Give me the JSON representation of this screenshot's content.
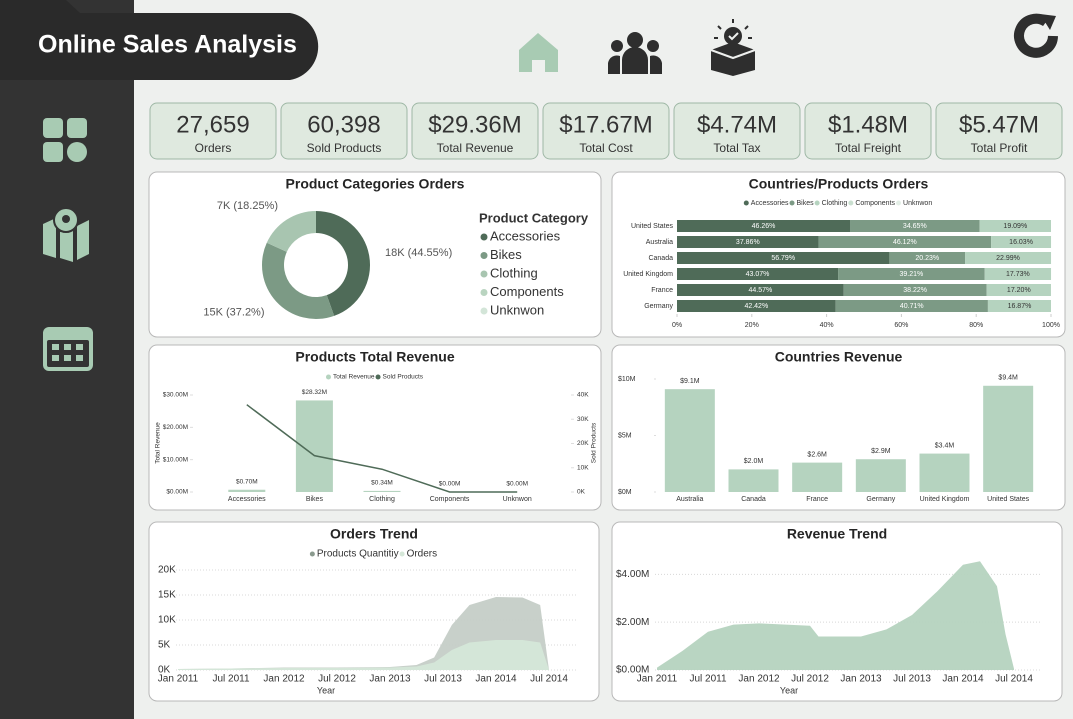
{
  "header": {
    "title": "Online Sales Analysis"
  },
  "kpis": [
    {
      "value": "27,659",
      "label": "Orders"
    },
    {
      "value": "60,398",
      "label": "Sold Products"
    },
    {
      "value": "$29.36M",
      "label": "Total Revenue"
    },
    {
      "value": "$17.67M",
      "label": "Total Cost"
    },
    {
      "value": "$4.74M",
      "label": "Total Tax"
    },
    {
      "value": "$1.48M",
      "label": "Total Freight"
    },
    {
      "value": "$5.47M",
      "label": "Total Profit"
    }
  ],
  "chart_data": [
    {
      "type": "pie",
      "title": "Product Categories Orders",
      "legend_title": "Product Category",
      "categories": [
        "Accessories",
        "Bikes",
        "Clothing",
        "Components",
        "Unknwon"
      ],
      "values": [
        44.55,
        37.2,
        18.25,
        0,
        0
      ],
      "value_labels": [
        "18K (44.55%)",
        "15K (37.2%)",
        "7K (18.25%)",
        null,
        null
      ],
      "colors": [
        "#4f6b58",
        "#7c9a85",
        "#a8c5b0",
        "#b9d4c0",
        "#d3e5d8"
      ]
    },
    {
      "type": "bar",
      "orientation": "horizontal",
      "stacked": true,
      "title": "Countries/Products Orders",
      "categories": [
        "United States",
        "Australia",
        "Canada",
        "United Kingdom",
        "France",
        "Germany"
      ],
      "series": [
        {
          "name": "Accessories",
          "color": "#4f6b58",
          "values": [
            46.26,
            37.86,
            56.79,
            43.07,
            44.57,
            42.42
          ],
          "value_labels": [
            "46.26%",
            "37.86%",
            "56.79%",
            "43.07%",
            "44.57%",
            "42.42%"
          ]
        },
        {
          "name": "Bikes",
          "color": "#7c9a85",
          "values": [
            34.65,
            46.12,
            20.23,
            39.21,
            38.22,
            40.71
          ],
          "value_labels": [
            "34.65%",
            "46.12%",
            "20.23%",
            "39.21%",
            "38.22%",
            "40.71%"
          ]
        },
        {
          "name": "Clothing",
          "color": "#b5d3bf",
          "values": [
            19.09,
            16.03,
            22.99,
            17.73,
            17.2,
            16.87
          ],
          "value_labels": [
            "19.09%",
            "16.03%",
            "22.99%",
            "17.73%",
            "17.20%",
            "16.87%"
          ]
        },
        {
          "name": "Components",
          "color": "#c9dfcf",
          "values": [
            0,
            0,
            0,
            0,
            0,
            0
          ]
        },
        {
          "name": "Unknwon",
          "color": "#e3eee6",
          "values": [
            0,
            0,
            0,
            0,
            0,
            0
          ]
        }
      ],
      "xlim": [
        0,
        100
      ],
      "xticks": [
        {
          "value": 0,
          "label": "0%"
        },
        {
          "value": 20,
          "label": "20%"
        },
        {
          "value": 40,
          "label": "40%"
        },
        {
          "value": 60,
          "label": "60%"
        },
        {
          "value": 80,
          "label": "80%"
        },
        {
          "value": 100,
          "label": "100%"
        }
      ]
    },
    {
      "type": "combo",
      "title": "Products Total Revenue",
      "categories": [
        "Accessories",
        "Bikes",
        "Clothing",
        "Components",
        "Unknwon"
      ],
      "ylabel": "Total Revenue",
      "y2label": "Sold Products",
      "series": [
        {
          "name": "Total Revenue",
          "type": "bar",
          "color": "#b5d3bf",
          "values": [
            0.7,
            28.32,
            0.34,
            0,
            0
          ],
          "value_labels": [
            "$0.70M",
            "$28.32M",
            "$0.34M",
            "$0.00M",
            "$0.00M"
          ]
        },
        {
          "name": "Sold Products",
          "type": "line",
          "axis": "y2",
          "color": "#4f6b58",
          "values": [
            36000,
            15000,
            9400,
            0,
            0
          ]
        }
      ],
      "ylim": [
        0,
        30
      ],
      "yticks": [
        {
          "value": 0,
          "label": "$0.00M"
        },
        {
          "value": 10,
          "label": "$10.00M"
        },
        {
          "value": 20,
          "label": "$20.00M"
        },
        {
          "value": 30,
          "label": "$30.00M"
        }
      ],
      "y2lim": [
        0,
        40000
      ],
      "y2ticks": [
        {
          "value": 0,
          "label": "0K"
        },
        {
          "value": 10000,
          "label": "10K"
        },
        {
          "value": 20000,
          "label": "20K"
        },
        {
          "value": 30000,
          "label": "30K"
        },
        {
          "value": 40000,
          "label": "40K"
        }
      ]
    },
    {
      "type": "bar",
      "title": "Countries Revenue",
      "categories": [
        "Australia",
        "Canada",
        "France",
        "Germany",
        "United Kingdom",
        "United States"
      ],
      "values": [
        9.1,
        2.0,
        2.6,
        2.9,
        3.4,
        9.4
      ],
      "value_labels": [
        "$9.1M",
        "$2.0M",
        "$2.6M",
        "$2.9M",
        "$3.4M",
        "$9.4M"
      ],
      "color": "#b5d3bf",
      "ylim": [
        0,
        10
      ],
      "yticks": [
        {
          "value": 0,
          "label": "$0M"
        },
        {
          "value": 5,
          "label": "$5M"
        },
        {
          "value": 10,
          "label": "$10M"
        }
      ]
    },
    {
      "type": "area",
      "title": "Orders Trend",
      "xlabel": "Year",
      "grid": true,
      "x": [
        "2011-01",
        "2011-07",
        "2012-01",
        "2012-07",
        "2013-01",
        "2013-04",
        "2013-06",
        "2013-08",
        "2013-10",
        "2014-01",
        "2014-04",
        "2014-06",
        "2014-07"
      ],
      "series": [
        {
          "name": "Products Quantitiy",
          "color": "#c5cec7",
          "values": [
            200,
            300,
            500,
            500,
            600,
            1000,
            2500,
            9000,
            13000,
            14600,
            14500,
            13000,
            0
          ]
        },
        {
          "name": "Orders",
          "color": "#d5e7d8",
          "values": [
            200,
            300,
            400,
            400,
            500,
            700,
            1500,
            4000,
            5500,
            6000,
            6000,
            5500,
            0
          ]
        }
      ],
      "xlim": [
        "2011-01",
        "2014-07"
      ],
      "xticks": [
        {
          "value": "2011-01",
          "label": "Jan 2011"
        },
        {
          "value": "2011-07",
          "label": "Jul 2011"
        },
        {
          "value": "2012-01",
          "label": "Jan 2012"
        },
        {
          "value": "2012-07",
          "label": "Jul 2012"
        },
        {
          "value": "2013-01",
          "label": "Jan 2013"
        },
        {
          "value": "2013-07",
          "label": "Jul 2013"
        },
        {
          "value": "2014-01",
          "label": "Jan 2014"
        },
        {
          "value": "2014-07",
          "label": "Jul 2014"
        }
      ],
      "ylim": [
        0,
        21000
      ],
      "yticks": [
        {
          "value": 0,
          "label": "0K"
        },
        {
          "value": 5000,
          "label": "5K"
        },
        {
          "value": 10000,
          "label": "10K"
        },
        {
          "value": 15000,
          "label": "15K"
        },
        {
          "value": 20000,
          "label": "20K"
        }
      ]
    },
    {
      "type": "area",
      "title": "Revenue Trend",
      "xlabel": "Year",
      "grid": true,
      "x": [
        "2011-01",
        "2011-04",
        "2011-07",
        "2011-10",
        "2012-01",
        "2012-07",
        "2012-08",
        "2013-01",
        "2013-04",
        "2013-07",
        "2013-10",
        "2014-01",
        "2014-03",
        "2014-05",
        "2014-06",
        "2014-07"
      ],
      "series": [
        {
          "name": "Revenue",
          "color": "#b5d3bf",
          "values": [
            0.1,
            0.8,
            1.6,
            1.9,
            1.95,
            1.85,
            1.4,
            1.4,
            1.7,
            2.3,
            3.3,
            4.4,
            4.55,
            3.5,
            1.5,
            0.05
          ]
        }
      ],
      "xlim": [
        "2011-01",
        "2014-07"
      ],
      "xticks": [
        {
          "value": "2011-01",
          "label": "Jan 2011"
        },
        {
          "value": "2011-07",
          "label": "Jul 2011"
        },
        {
          "value": "2012-01",
          "label": "Jan 2012"
        },
        {
          "value": "2012-07",
          "label": "Jul 2012"
        },
        {
          "value": "2013-01",
          "label": "Jan 2013"
        },
        {
          "value": "2013-07",
          "label": "Jul 2013"
        },
        {
          "value": "2014-01",
          "label": "Jan 2014"
        },
        {
          "value": "2014-07",
          "label": "Jul 2014"
        }
      ],
      "ylim": [
        0,
        4.6
      ],
      "yticks": [
        {
          "value": 0,
          "label": "$0.00M"
        },
        {
          "value": 2,
          "label": "$2.00M"
        },
        {
          "value": 4,
          "label": "$4.00M"
        }
      ]
    }
  ]
}
